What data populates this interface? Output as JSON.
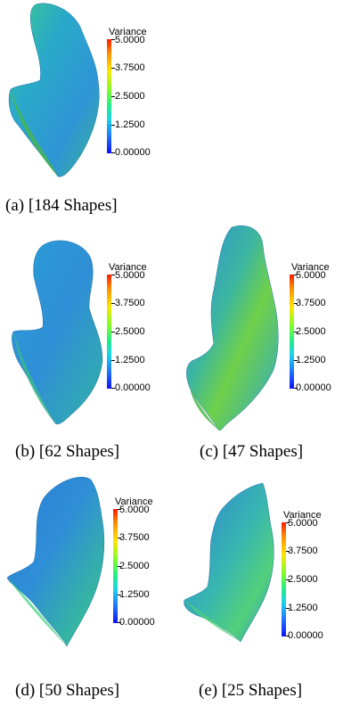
{
  "colorbar": {
    "title": "Variance",
    "ticks": [
      "5.0000",
      "3.7500",
      "2.5000",
      "1.2500",
      "0.00000"
    ],
    "range": [
      0,
      5
    ],
    "colors": [
      "#1010ff",
      "#19d6e6",
      "#22ee88",
      "#7dff2a",
      "#ffe600",
      "#ff1a00"
    ]
  },
  "panels": [
    {
      "caption": "(a) [184 Shapes]"
    },
    {
      "caption": "(b) [62 Shapes]"
    },
    {
      "caption": "(c) [47 Shapes]"
    },
    {
      "caption": "(d) [50 Shapes]"
    },
    {
      "caption": "(e) [25 Shapes]"
    }
  ]
}
